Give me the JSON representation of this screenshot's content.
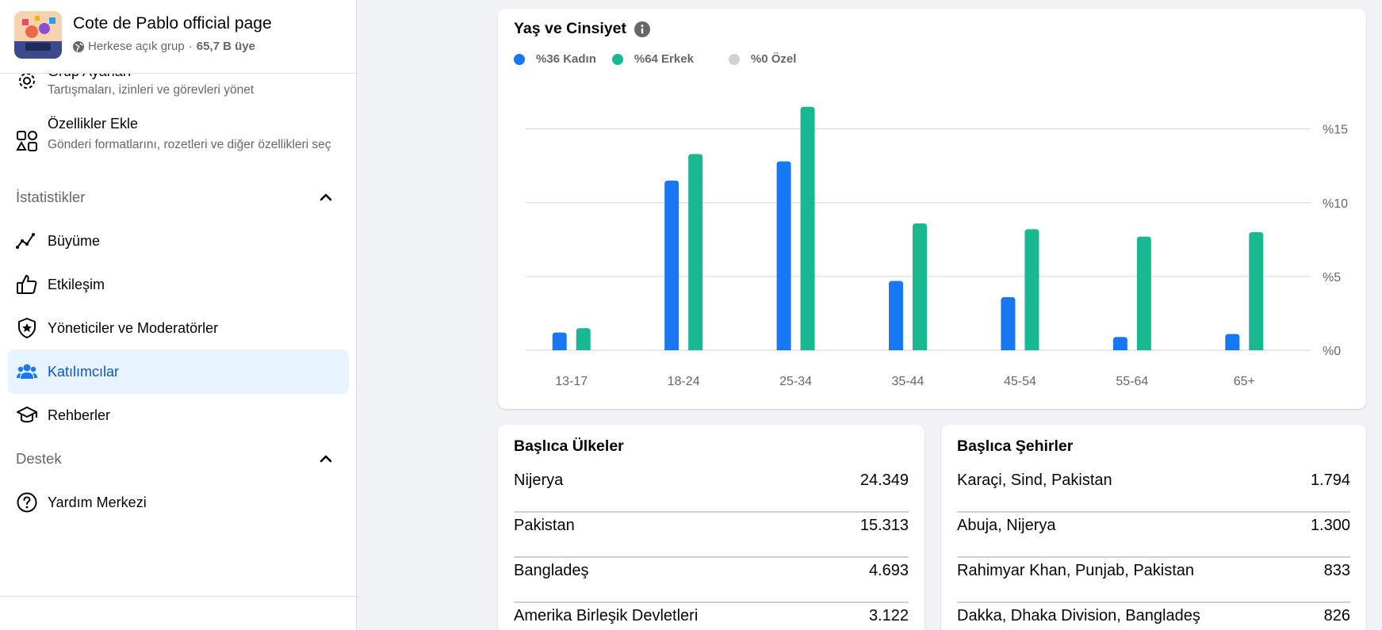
{
  "group": {
    "name": "Cote de Pablo official page",
    "privacy": "Herkese açık grup",
    "separator": "·",
    "members": "65,7 B üye"
  },
  "sidebar": {
    "settings": {
      "title": "Grup Ayarları",
      "desc": "Tartışmaları, izinleri ve görevleri yönet"
    },
    "features": {
      "title": "Özellikler Ekle",
      "desc": "Gönderi formatlarını, rozetleri ve diğer özellikleri seç"
    },
    "stats_section": "İstatistikler",
    "stats_items": [
      {
        "label": "Büyüme",
        "icon": "growth-icon"
      },
      {
        "label": "Etkileşim",
        "icon": "thumbs-up-icon"
      },
      {
        "label": "Yöneticiler ve Moderatörler",
        "icon": "shield-star-icon"
      },
      {
        "label": "Katılımcılar",
        "icon": "people-icon",
        "active": true
      },
      {
        "label": "Rehberler",
        "icon": "graduation-cap-icon"
      }
    ],
    "support_section": "Destek",
    "support_items": [
      {
        "label": "Yardım Merkezi",
        "icon": "question-circle-icon"
      }
    ]
  },
  "age_gender": {
    "title": "Yaş ve Cinsiyet",
    "legend": [
      {
        "label": "%36 Kadın",
        "color": "#1877f2"
      },
      {
        "label": "%64 Erkek",
        "color": "#19b890"
      },
      {
        "label": "%0 Özel",
        "color": "#ced0d4"
      }
    ]
  },
  "chart_data": {
    "type": "bar",
    "categories": [
      "13-17",
      "18-24",
      "25-34",
      "35-44",
      "45-54",
      "55-64",
      "65+"
    ],
    "series": [
      {
        "name": "Kadın",
        "color": "#1877f2",
        "values": [
          1.2,
          11.5,
          12.8,
          4.7,
          3.6,
          0.9,
          1.1
        ]
      },
      {
        "name": "Erkek",
        "color": "#19b890",
        "values": [
          1.5,
          13.3,
          16.5,
          8.6,
          8.2,
          7.7,
          8.0
        ]
      }
    ],
    "y_ticks": [
      "%0",
      "%5",
      "%10",
      "%15"
    ],
    "y_tick_values": [
      0,
      5,
      10,
      15
    ],
    "ylim": [
      0,
      16.7
    ],
    "y_axis_side": "right",
    "grid": true
  },
  "countries": {
    "title": "Başlıca Ülkeler",
    "rows": [
      {
        "name": "Nijerya",
        "value": "24.349"
      },
      {
        "name": "Pakistan",
        "value": "15.313"
      },
      {
        "name": "Bangladeş",
        "value": "4.693"
      },
      {
        "name": "Amerika Birleşik Devletleri",
        "value": "3.122"
      }
    ]
  },
  "cities": {
    "title": "Başlıca Şehirler",
    "rows": [
      {
        "name": "Karaçi, Sind, Pakistan",
        "value": "1.794"
      },
      {
        "name": "Abuja, Nijerya",
        "value": "1.300"
      },
      {
        "name": "Rahimyar Khan, Punjab, Pakistan",
        "value": "833"
      },
      {
        "name": "Dakka, Dhaka Division, Bangladeş",
        "value": "826"
      }
    ]
  }
}
